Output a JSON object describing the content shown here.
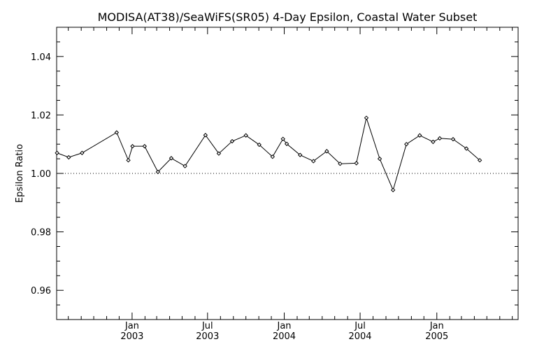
{
  "chart_data": {
    "type": "line",
    "title": "MODISA(AT38)/SeaWiFS(SR05) 4-Day Epsilon, Coastal Water Subset",
    "xlabel": "",
    "ylabel": "Epsilon Ratio",
    "x_range": [
      "2002-07-04",
      "2005-07-15"
    ],
    "ylim": [
      0.95,
      1.05
    ],
    "y_ticks": [
      0.96,
      0.98,
      1.0,
      1.02,
      1.04
    ],
    "y_tick_labels": [
      "0.96",
      "0.98",
      "1.00",
      "1.02",
      "1.04"
    ],
    "x_ticks": [
      {
        "date": "2003-01-01",
        "month": "Jan",
        "year": "2003"
      },
      {
        "date": "2003-07-01",
        "month": "Jul",
        "year": "2003"
      },
      {
        "date": "2004-01-01",
        "month": "Jan",
        "year": "2004"
      },
      {
        "date": "2004-07-01",
        "month": "Jul",
        "year": "2004"
      },
      {
        "date": "2005-01-01",
        "month": "Jan",
        "year": "2005"
      }
    ],
    "reference_line": {
      "y": 1.0,
      "style": "dotted"
    },
    "series": [
      {
        "name": "",
        "marker": "diamond",
        "points": [
          {
            "x": "2002-07-05",
            "y": 1.007
          },
          {
            "x": "2002-08-02",
            "y": 1.0055
          },
          {
            "x": "2002-09-03",
            "y": 1.007
          },
          {
            "x": "2002-11-25",
            "y": 1.014
          },
          {
            "x": "2002-12-23",
            "y": 1.0045
          },
          {
            "x": "2003-01-02",
            "y": 1.0093
          },
          {
            "x": "2003-01-31",
            "y": 1.0093
          },
          {
            "x": "2003-03-04",
            "y": 1.0005
          },
          {
            "x": "2003-04-05",
            "y": 1.0052
          },
          {
            "x": "2003-05-08",
            "y": 1.0025
          },
          {
            "x": "2003-06-26",
            "y": 1.0131
          },
          {
            "x": "2003-07-28",
            "y": 1.0068
          },
          {
            "x": "2003-08-29",
            "y": 1.011
          },
          {
            "x": "2003-10-01",
            "y": 1.013
          },
          {
            "x": "2003-11-02",
            "y": 1.0098
          },
          {
            "x": "2003-12-04",
            "y": 1.0057
          },
          {
            "x": "2003-12-29",
            "y": 1.0118
          },
          {
            "x": "2004-01-07",
            "y": 1.0101
          },
          {
            "x": "2004-02-08",
            "y": 1.0063
          },
          {
            "x": "2004-03-11",
            "y": 1.0042
          },
          {
            "x": "2004-04-12",
            "y": 1.0076
          },
          {
            "x": "2004-05-14",
            "y": 1.0033
          },
          {
            "x": "2004-06-22",
            "y": 1.0035
          },
          {
            "x": "2004-07-16",
            "y": 1.019
          },
          {
            "x": "2004-08-17",
            "y": 1.005
          },
          {
            "x": "2004-09-18",
            "y": 0.9943
          },
          {
            "x": "2004-10-20",
            "y": 1.01
          },
          {
            "x": "2004-11-21",
            "y": 1.013
          },
          {
            "x": "2004-12-23",
            "y": 1.0108
          },
          {
            "x": "2005-01-08",
            "y": 1.012
          },
          {
            "x": "2005-02-09",
            "y": 1.0117
          },
          {
            "x": "2005-03-13",
            "y": 1.0085
          },
          {
            "x": "2005-04-14",
            "y": 1.0045
          }
        ]
      }
    ]
  }
}
